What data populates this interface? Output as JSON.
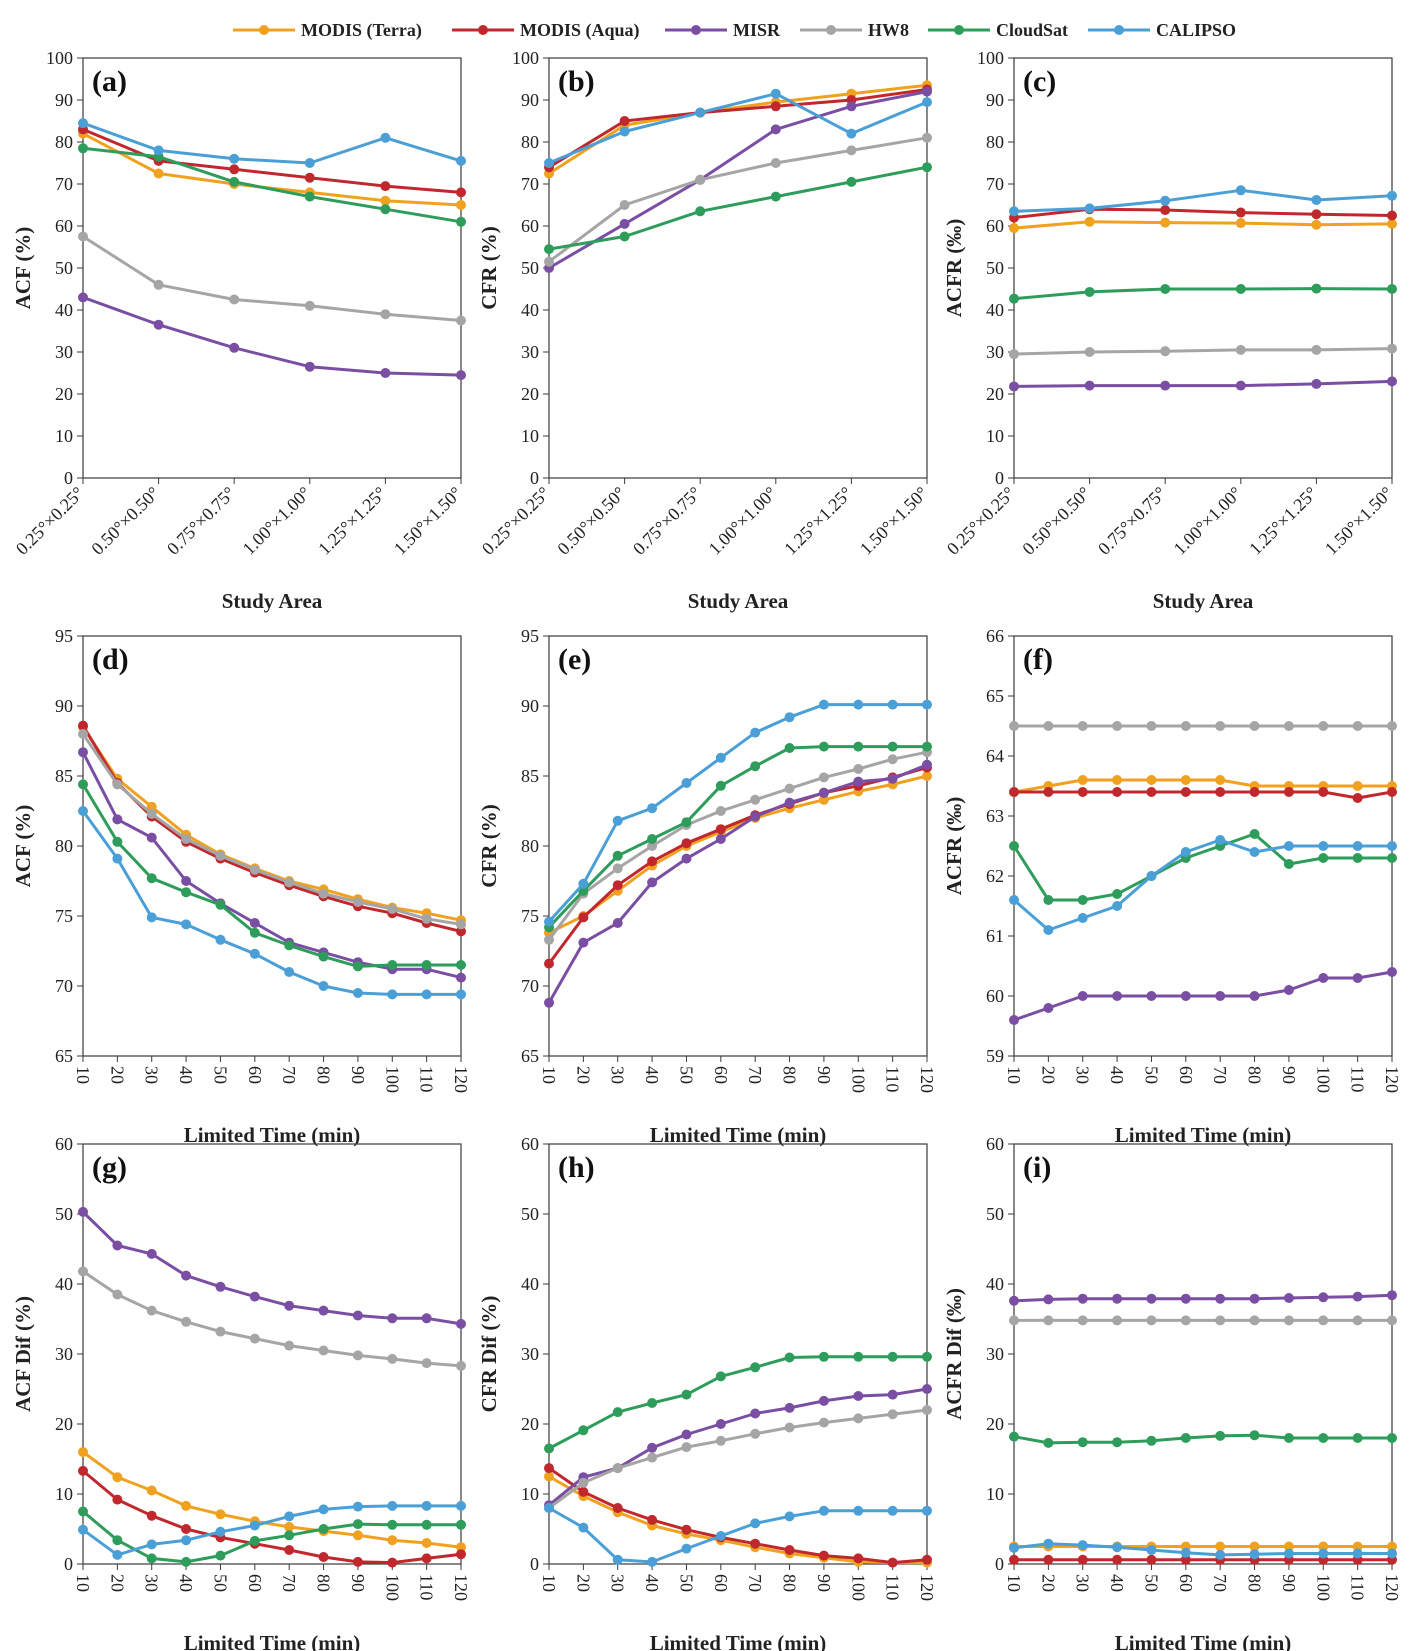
{
  "colors": {
    "MODIS (Terra)": "#f0a11f",
    "MODIS (Aqua)": "#c0282e",
    "MISR": "#7a4ea3",
    "HW8": "#a5a5a5",
    "CloudSat": "#2e9c5a",
    "CALIPSO": "#4a9fd6"
  },
  "legend": [
    "MODIS (Terra)",
    "MODIS (Aqua)",
    "MISR",
    "HW8",
    "CloudSat",
    "CALIPSO"
  ],
  "chart_data": [
    {
      "panel": "(a)",
      "type": "line",
      "ylabel": "ACF (%)",
      "xlabel": "Study Area",
      "ylim": [
        0,
        100
      ],
      "yticks": [
        0,
        10,
        20,
        30,
        40,
        50,
        60,
        70,
        80,
        90,
        100
      ],
      "categories": [
        "0.25°×0.25°",
        "0.50°×0.50°",
        "0.75°×0.75°",
        "1.00°×1.00°",
        "1.25°×1.25°",
        "1.50°×1.50°"
      ],
      "series": [
        {
          "name": "MODIS (Terra)",
          "values": [
            82,
            72.5,
            70,
            68,
            66,
            65
          ]
        },
        {
          "name": "MODIS (Aqua)",
          "values": [
            83,
            75.5,
            73.5,
            71.5,
            69.5,
            68
          ]
        },
        {
          "name": "MISR",
          "values": [
            43,
            36.5,
            31,
            26.5,
            25,
            24.5
          ]
        },
        {
          "name": "HW8",
          "values": [
            57.5,
            46,
            42.5,
            41,
            39,
            37.5
          ]
        },
        {
          "name": "CloudSat",
          "values": [
            78.5,
            76.5,
            70.5,
            67,
            64,
            61
          ]
        },
        {
          "name": "CALIPSO",
          "values": [
            84.5,
            78,
            76,
            75,
            81,
            75.5
          ]
        }
      ]
    },
    {
      "panel": "(b)",
      "type": "line",
      "ylabel": "CFR (%)",
      "xlabel": "Study Area",
      "ylim": [
        0,
        100
      ],
      "yticks": [
        0,
        10,
        20,
        30,
        40,
        50,
        60,
        70,
        80,
        90,
        100
      ],
      "categories": [
        "0.25°×0.25°",
        "0.50°×0.50°",
        "0.75°×0.75°",
        "1.00°×1.00°",
        "1.25°×1.25°",
        "1.50°×1.50°"
      ],
      "series": [
        {
          "name": "MODIS (Terra)",
          "values": [
            72.5,
            84,
            87,
            89.5,
            91.5,
            93.5
          ]
        },
        {
          "name": "MODIS (Aqua)",
          "values": [
            74,
            85,
            87,
            88.5,
            90,
            92.5
          ]
        },
        {
          "name": "MISR",
          "values": [
            50,
            60.5,
            71,
            83,
            88.5,
            92
          ]
        },
        {
          "name": "HW8",
          "values": [
            51.5,
            65,
            71,
            75,
            78,
            81
          ]
        },
        {
          "name": "CloudSat",
          "values": [
            54.5,
            57.5,
            63.5,
            67,
            70.5,
            74
          ]
        },
        {
          "name": "CALIPSO",
          "values": [
            75,
            82.5,
            87,
            91.5,
            82,
            89.5
          ]
        }
      ]
    },
    {
      "panel": "(c)",
      "type": "line",
      "ylabel": "ACFR (‰)",
      "xlabel": "Study Area",
      "ylim": [
        0,
        100
      ],
      "yticks": [
        0,
        10,
        20,
        30,
        40,
        50,
        60,
        70,
        80,
        90,
        100
      ],
      "categories": [
        "0.25°×0.25°",
        "0.50°×0.50°",
        "0.75°×0.75°",
        "1.00°×1.00°",
        "1.25°×1.25°",
        "1.50°×1.50°"
      ],
      "series": [
        {
          "name": "MODIS (Terra)",
          "values": [
            59.5,
            61,
            60.8,
            60.7,
            60.3,
            60.5
          ]
        },
        {
          "name": "MODIS (Aqua)",
          "values": [
            62,
            64,
            63.8,
            63.2,
            62.8,
            62.5
          ]
        },
        {
          "name": "MISR",
          "values": [
            21.8,
            22,
            22,
            22,
            22.4,
            23
          ]
        },
        {
          "name": "HW8",
          "values": [
            29.5,
            30,
            30.2,
            30.5,
            30.5,
            30.8
          ]
        },
        {
          "name": "CloudSat",
          "values": [
            42.7,
            44.3,
            45,
            45,
            45.1,
            45
          ]
        },
        {
          "name": "CALIPSO",
          "values": [
            63.5,
            64.2,
            66,
            68.5,
            66.2,
            67.2
          ]
        }
      ]
    },
    {
      "panel": "(d)",
      "type": "line",
      "ylabel": "ACF (%)",
      "xlabel": "Limited Time (min)",
      "ylim": [
        65,
        95
      ],
      "yticks": [
        65,
        70,
        75,
        80,
        85,
        90,
        95
      ],
      "categories": [
        "10",
        "20",
        "30",
        "40",
        "50",
        "60",
        "70",
        "80",
        "90",
        "100",
        "110",
        "120"
      ],
      "series": [
        {
          "name": "MODIS (Terra)",
          "values": [
            88.5,
            84.8,
            82.8,
            80.8,
            79.4,
            78.4,
            77.5,
            76.9,
            76.2,
            75.6,
            75.2,
            74.7
          ]
        },
        {
          "name": "MODIS (Aqua)",
          "values": [
            88.6,
            84.5,
            82.1,
            80.3,
            79.1,
            78.1,
            77.2,
            76.4,
            75.7,
            75.2,
            74.5,
            73.9
          ]
        },
        {
          "name": "MISR",
          "values": [
            86.7,
            81.9,
            80.6,
            77.5,
            75.9,
            74.5,
            73.1,
            72.4,
            71.7,
            71.2,
            71.2,
            70.6
          ]
        },
        {
          "name": "HW8",
          "values": [
            88,
            84.4,
            82.3,
            80.5,
            79.3,
            78.3,
            77.4,
            76.6,
            76,
            75.5,
            74.8,
            74.4
          ]
        },
        {
          "name": "CloudSat",
          "values": [
            84.4,
            80.3,
            77.7,
            76.7,
            75.8,
            73.8,
            72.9,
            72.1,
            71.4,
            71.5,
            71.5,
            71.5
          ]
        },
        {
          "name": "CALIPSO",
          "values": [
            82.5,
            79.1,
            74.9,
            74.4,
            73.3,
            72.3,
            71,
            70,
            69.5,
            69.4,
            69.4,
            69.4
          ]
        }
      ]
    },
    {
      "panel": "(e)",
      "type": "line",
      "ylabel": "CFR (%)",
      "xlabel": "Limited Time (min)",
      "ylim": [
        65,
        95
      ],
      "yticks": [
        65,
        70,
        75,
        80,
        85,
        90,
        95
      ],
      "categories": [
        "10",
        "20",
        "30",
        "40",
        "50",
        "60",
        "70",
        "80",
        "90",
        "100",
        "110",
        "120"
      ],
      "series": [
        {
          "name": "MODIS (Terra)",
          "values": [
            73.8,
            75,
            76.8,
            78.6,
            80,
            81,
            82,
            82.7,
            83.3,
            83.9,
            84.4,
            85
          ]
        },
        {
          "name": "MODIS (Aqua)",
          "values": [
            71.6,
            74.9,
            77.2,
            78.9,
            80.2,
            81.2,
            82.2,
            83,
            83.8,
            84.3,
            84.9,
            85.6
          ]
        },
        {
          "name": "MISR",
          "values": [
            68.8,
            73.1,
            74.5,
            77.4,
            79.1,
            80.5,
            82.1,
            83.1,
            83.8,
            84.6,
            84.8,
            85.8
          ]
        },
        {
          "name": "HW8",
          "values": [
            73.3,
            76.6,
            78.4,
            80,
            81.5,
            82.5,
            83.3,
            84.1,
            84.9,
            85.5,
            86.2,
            86.7
          ]
        },
        {
          "name": "CloudSat",
          "values": [
            74.2,
            76.8,
            79.3,
            80.5,
            81.7,
            84.3,
            85.7,
            87,
            87.1,
            87.1,
            87.1,
            87.1
          ]
        },
        {
          "name": "CALIPSO",
          "values": [
            74.6,
            77.3,
            81.8,
            82.7,
            84.5,
            86.3,
            88.1,
            89.2,
            90.1,
            90.1,
            90.1,
            90.1
          ]
        }
      ]
    },
    {
      "panel": "(f)",
      "type": "line",
      "ylabel": "ACFR (‰)",
      "xlabel": "Limited Time (min)",
      "ylim": [
        59,
        66
      ],
      "yticks": [
        59,
        60,
        61,
        62,
        63,
        64,
        65,
        66
      ],
      "categories": [
        "10",
        "20",
        "30",
        "40",
        "50",
        "60",
        "70",
        "80",
        "90",
        "100",
        "110",
        "120"
      ],
      "series": [
        {
          "name": "MODIS (Terra)",
          "values": [
            63.4,
            63.5,
            63.6,
            63.6,
            63.6,
            63.6,
            63.6,
            63.5,
            63.5,
            63.5,
            63.5,
            63.5
          ]
        },
        {
          "name": "MODIS (Aqua)",
          "values": [
            63.4,
            63.4,
            63.4,
            63.4,
            63.4,
            63.4,
            63.4,
            63.4,
            63.4,
            63.4,
            63.3,
            63.4
          ]
        },
        {
          "name": "MISR",
          "values": [
            59.6,
            59.8,
            60,
            60,
            60,
            60,
            60,
            60,
            60.1,
            60.3,
            60.3,
            60.4
          ]
        },
        {
          "name": "HW8",
          "values": [
            64.5,
            64.5,
            64.5,
            64.5,
            64.5,
            64.5,
            64.5,
            64.5,
            64.5,
            64.5,
            64.5,
            64.5
          ]
        },
        {
          "name": "CloudSat",
          "values": [
            62.5,
            61.6,
            61.6,
            61.7,
            62,
            62.3,
            62.5,
            62.7,
            62.2,
            62.3,
            62.3,
            62.3
          ]
        },
        {
          "name": "CALIPSO",
          "values": [
            61.6,
            61.1,
            61.3,
            61.5,
            62,
            62.4,
            62.6,
            62.4,
            62.5,
            62.5,
            62.5,
            62.5
          ]
        }
      ]
    },
    {
      "panel": "(g)",
      "type": "line",
      "ylabel": "ACF Dif (%)",
      "xlabel": "Limited Time (min)",
      "ylim": [
        0,
        60
      ],
      "yticks": [
        0,
        10,
        20,
        30,
        40,
        50,
        60
      ],
      "categories": [
        "10",
        "20",
        "30",
        "40",
        "50",
        "60",
        "70",
        "80",
        "90",
        "100",
        "110",
        "120"
      ],
      "series": [
        {
          "name": "MODIS (Terra)",
          "values": [
            16,
            12.4,
            10.5,
            8.3,
            7.1,
            6.1,
            5.3,
            4.7,
            4.1,
            3.4,
            3,
            2.4
          ]
        },
        {
          "name": "MODIS (Aqua)",
          "values": [
            13.3,
            9.2,
            6.9,
            5,
            3.8,
            2.9,
            2,
            1,
            0.3,
            0.2,
            0.8,
            1.4
          ]
        },
        {
          "name": "MISR",
          "values": [
            50.3,
            45.5,
            44.3,
            41.2,
            39.6,
            38.2,
            36.9,
            36.2,
            35.5,
            35.1,
            35.1,
            34.3
          ]
        },
        {
          "name": "HW8",
          "values": [
            41.8,
            38.5,
            36.2,
            34.6,
            33.2,
            32.2,
            31.2,
            30.5,
            29.8,
            29.3,
            28.7,
            28.3
          ]
        },
        {
          "name": "CloudSat",
          "values": [
            7.5,
            3.4,
            0.8,
            0.3,
            1.2,
            3.3,
            4.1,
            5,
            5.7,
            5.6,
            5.6,
            5.6
          ]
        },
        {
          "name": "CALIPSO",
          "values": [
            4.9,
            1.3,
            2.8,
            3.4,
            4.6,
            5.5,
            6.8,
            7.8,
            8.2,
            8.3,
            8.3,
            8.3
          ]
        }
      ]
    },
    {
      "panel": "(h)",
      "type": "line",
      "ylabel": "CFR Dif (%)",
      "xlabel": "Limited Time (min)",
      "ylim": [
        0,
        60
      ],
      "yticks": [
        0,
        10,
        20,
        30,
        40,
        50,
        60
      ],
      "categories": [
        "10",
        "20",
        "30",
        "40",
        "50",
        "60",
        "70",
        "80",
        "90",
        "100",
        "110",
        "120"
      ],
      "series": [
        {
          "name": "MODIS (Terra)",
          "values": [
            12.5,
            9.7,
            7.4,
            5.5,
            4.3,
            3.4,
            2.4,
            1.5,
            0.9,
            0.3,
            0.2,
            0.2
          ]
        },
        {
          "name": "MODIS (Aqua)",
          "values": [
            13.7,
            10.3,
            8,
            6.3,
            4.9,
            3.8,
            2.9,
            2,
            1.2,
            0.8,
            0.2,
            0.6
          ]
        },
        {
          "name": "MISR",
          "values": [
            8.4,
            12.4,
            13.7,
            16.6,
            18.5,
            20,
            21.5,
            22.3,
            23.3,
            24,
            24.2,
            25
          ]
        },
        {
          "name": "HW8",
          "values": [
            8,
            11.6,
            13.7,
            15.2,
            16.7,
            17.6,
            18.6,
            19.5,
            20.2,
            20.8,
            21.4,
            22
          ]
        },
        {
          "name": "CloudSat",
          "values": [
            16.5,
            19.1,
            21.7,
            23,
            24.2,
            26.8,
            28.1,
            29.5,
            29.6,
            29.6,
            29.6,
            29.6
          ]
        },
        {
          "name": "CALIPSO",
          "values": [
            8,
            5.2,
            0.6,
            0.3,
            2.2,
            4,
            5.8,
            6.8,
            7.6,
            7.6,
            7.6,
            7.6
          ]
        }
      ]
    },
    {
      "panel": "(i)",
      "type": "line",
      "ylabel": "ACFR Dif (‰)",
      "xlabel": "Limited Time (min)",
      "ylim": [
        0,
        60
      ],
      "yticks": [
        0,
        10,
        20,
        30,
        40,
        50,
        60
      ],
      "categories": [
        "10",
        "20",
        "30",
        "40",
        "50",
        "60",
        "70",
        "80",
        "90",
        "100",
        "110",
        "120"
      ],
      "series": [
        {
          "name": "MODIS (Terra)",
          "values": [
            2.5,
            2.5,
            2.5,
            2.5,
            2.5,
            2.5,
            2.5,
            2.5,
            2.5,
            2.5,
            2.5,
            2.5
          ]
        },
        {
          "name": "MODIS (Aqua)",
          "values": [
            0.6,
            0.6,
            0.6,
            0.6,
            0.6,
            0.6,
            0.6,
            0.6,
            0.6,
            0.6,
            0.6,
            0.6
          ]
        },
        {
          "name": "MISR",
          "values": [
            37.6,
            37.8,
            37.9,
            37.9,
            37.9,
            37.9,
            37.9,
            37.9,
            38,
            38.1,
            38.2,
            38.4
          ]
        },
        {
          "name": "HW8",
          "values": [
            34.8,
            34.8,
            34.8,
            34.8,
            34.8,
            34.8,
            34.8,
            34.8,
            34.8,
            34.8,
            34.8,
            34.8
          ]
        },
        {
          "name": "CloudSat",
          "values": [
            18.2,
            17.3,
            17.4,
            17.4,
            17.6,
            18,
            18.3,
            18.4,
            18,
            18,
            18,
            18
          ]
        },
        {
          "name": "CALIPSO",
          "values": [
            2.3,
            2.9,
            2.7,
            2.4,
            2,
            1.6,
            1.3,
            1.4,
            1.5,
            1.5,
            1.5,
            1.5
          ]
        }
      ]
    }
  ]
}
